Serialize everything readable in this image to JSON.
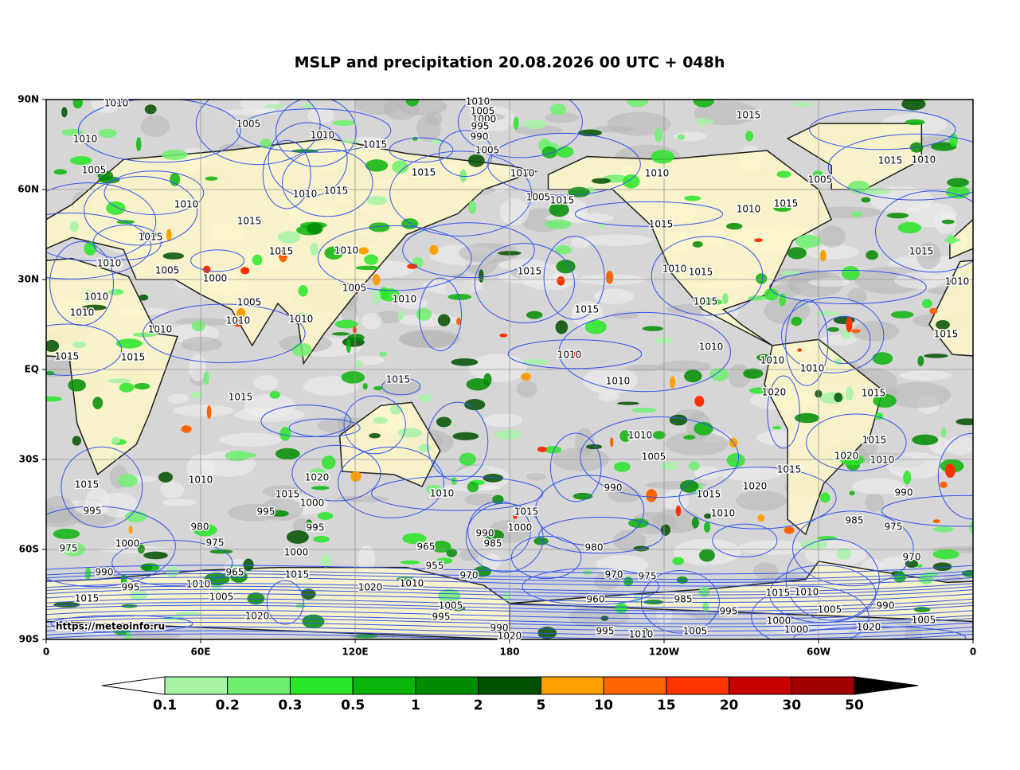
{
  "map": {
    "title": "MSLP and precipitation 20.08.2026 00 UTC + 048h",
    "watermark": "https://meteoinfo.ru",
    "x_labels": [
      "0",
      "60E",
      "120E",
      "180",
      "120W",
      "60W",
      "0"
    ],
    "y_labels": [
      "90N",
      "60N",
      "30N",
      "EQ",
      "30S",
      "60S",
      "90S"
    ],
    "colorbar": {
      "levels": [
        0.1,
        0.2,
        0.3,
        0.5,
        1,
        2,
        5,
        10,
        15,
        20,
        30,
        50
      ],
      "colors": [
        "#a6f3a6",
        "#6ef06e",
        "#28e628",
        "#0ab40a",
        "#008c00",
        "#005000",
        "#ffa000",
        "#ff6400",
        "#ff3200",
        "#c80000",
        "#a00000"
      ],
      "under_color": "#ffffff",
      "over_color": "#000000"
    },
    "isobar_labels": [
      1010,
      1010,
      1005,
      1000,
      995,
      990,
      1005,
      1015,
      1005,
      1010,
      1015,
      1010,
      1005,
      1015,
      1010,
      1010,
      1005,
      1015,
      1005,
      1015,
      1010,
      1010,
      1010,
      1015,
      1015,
      1010,
      1015,
      1015,
      1015,
      1010,
      1015,
      1015,
      1010,
      1005,
      1000,
      1015,
      1010,
      1015,
      1010,
      1005,
      1010,
      1015,
      1015,
      1010,
      1010,
      1010,
      1010,
      1005,
      1010,
      1010,
      1010,
      1015,
      1015,
      1015,
      1010,
      1010,
      1015,
      1010,
      1015,
      1020,
      1015,
      1010,
      1015,
      1005,
      1020,
      1010,
      1015,
      1020,
      1010,
      1015,
      1010,
      990,
      1020,
      1015,
      1015,
      1000,
      990,
      995,
      995,
      1015,
      1010,
      980,
      995,
      1000,
      990,
      985,
      975,
      975,
      1000,
      985,
      965,
      980,
      975,
      1000,
      970,
      955,
      990,
      965,
      1015,
      970,
      970,
      975,
      1010,
      995,
      1010,
      1020,
      1015,
      1005,
      960,
      985,
      1015,
      1010,
      1005,
      1005,
      990,
      995,
      1020,
      995,
      1000,
      1005,
      990,
      1020,
      995,
      1010,
      1005,
      1000,
      1020
    ]
  }
}
